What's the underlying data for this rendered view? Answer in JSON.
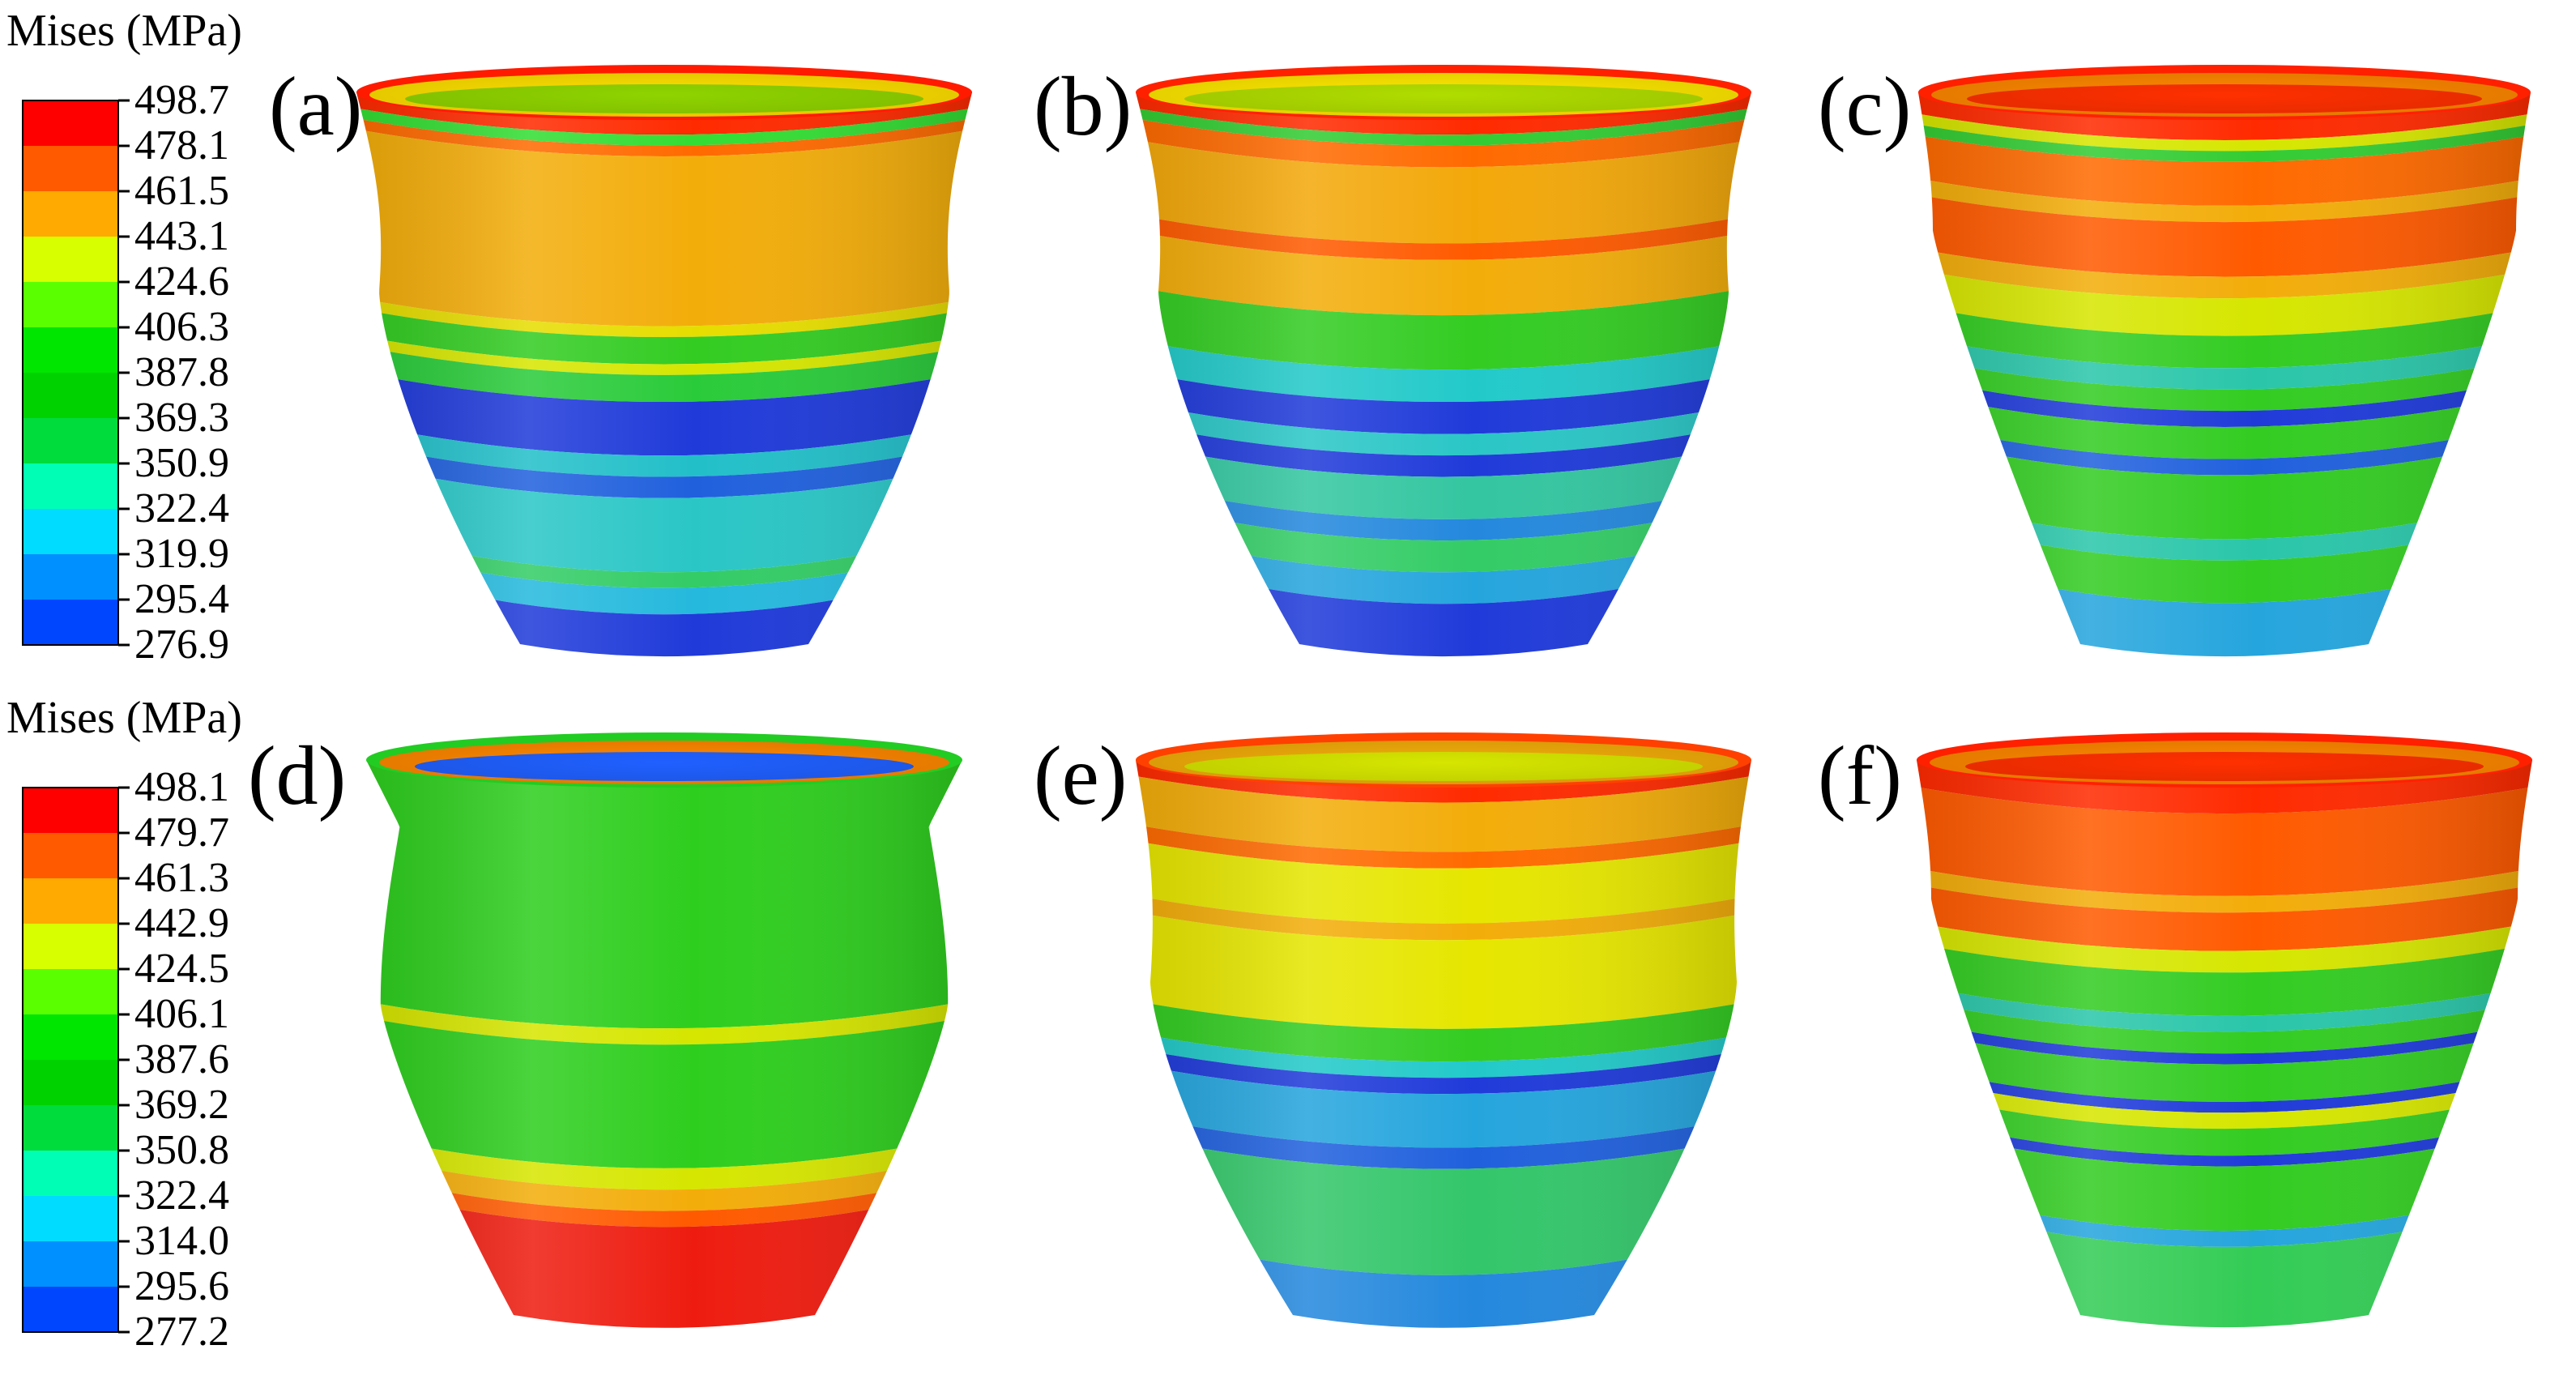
{
  "legends": [
    {
      "title": "Mises (MPa)",
      "ticks": [
        "498.7",
        "478.1",
        "461.5",
        "443.1",
        "424.6",
        "406.3",
        "387.8",
        "369.3",
        "350.9",
        "322.4",
        "319.9",
        "295.4",
        "276.9"
      ],
      "colors": [
        "#ff0000",
        "#ff5a00",
        "#ffaa00",
        "#d7ff00",
        "#5aff00",
        "#00e600",
        "#00d200",
        "#00dc3c",
        "#00ffb4",
        "#00dcff",
        "#0090ff",
        "#0046ff",
        "#0000ff"
      ]
    },
    {
      "title": "Mises (MPa)",
      "ticks": [
        "498.1",
        "479.7",
        "461.3",
        "442.9",
        "424.5",
        "406.1",
        "387.6",
        "369.2",
        "350.8",
        "322.4",
        "314.0",
        "295.6",
        "277.2"
      ],
      "colors": [
        "#ff0000",
        "#ff5a00",
        "#ffaa00",
        "#d7ff00",
        "#5aff00",
        "#00e600",
        "#00d200",
        "#00dc3c",
        "#00ffb4",
        "#00dcff",
        "#0090ff",
        "#0046ff",
        "#0000ff"
      ]
    }
  ],
  "panels": [
    {
      "label": "(a)",
      "rim_colors": [
        "#ff1a00",
        "#ffe000",
        "#8fd400"
      ],
      "bands": [
        {
          "from": 0.0,
          "to": 0.03,
          "color": "#ff2a00"
        },
        {
          "from": 0.03,
          "to": 0.05,
          "color": "#33dd33"
        },
        {
          "from": 0.05,
          "to": 0.07,
          "color": "#ff6a00"
        },
        {
          "from": 0.07,
          "to": 0.38,
          "color": "#f3ad0a"
        },
        {
          "from": 0.38,
          "to": 0.4,
          "color": "#e6dd00"
        },
        {
          "from": 0.4,
          "to": 0.45,
          "color": "#33cc22"
        },
        {
          "from": 0.45,
          "to": 0.47,
          "color": "#d6e600"
        },
        {
          "from": 0.47,
          "to": 0.52,
          "color": "#2acb3a"
        },
        {
          "from": 0.52,
          "to": 0.62,
          "color": "#1f3ad9"
        },
        {
          "from": 0.62,
          "to": 0.66,
          "color": "#22bfc9"
        },
        {
          "from": 0.66,
          "to": 0.7,
          "color": "#2060dd"
        },
        {
          "from": 0.7,
          "to": 0.84,
          "color": "#2ac6c6"
        },
        {
          "from": 0.84,
          "to": 0.87,
          "color": "#33cc66"
        },
        {
          "from": 0.87,
          "to": 0.92,
          "color": "#25b9dd"
        },
        {
          "from": 0.92,
          "to": 1.0,
          "color": "#1f3ad9"
        }
      ]
    },
    {
      "label": "(b)",
      "rim_colors": [
        "#ff2000",
        "#ffe800",
        "#b0dd00"
      ],
      "bands": [
        {
          "from": 0.0,
          "to": 0.03,
          "color": "#ff2a00"
        },
        {
          "from": 0.03,
          "to": 0.05,
          "color": "#33cc33"
        },
        {
          "from": 0.05,
          "to": 0.09,
          "color": "#ff6a00"
        },
        {
          "from": 0.09,
          "to": 0.23,
          "color": "#f3a80a"
        },
        {
          "from": 0.23,
          "to": 0.26,
          "color": "#ff5a00"
        },
        {
          "from": 0.26,
          "to": 0.36,
          "color": "#f3ad0a"
        },
        {
          "from": 0.36,
          "to": 0.46,
          "color": "#33cc22"
        },
        {
          "from": 0.46,
          "to": 0.52,
          "color": "#22c9c9"
        },
        {
          "from": 0.52,
          "to": 0.58,
          "color": "#1f3ad9"
        },
        {
          "from": 0.58,
          "to": 0.62,
          "color": "#2ac6c6"
        },
        {
          "from": 0.62,
          "to": 0.66,
          "color": "#1f3ad9"
        },
        {
          "from": 0.66,
          "to": 0.74,
          "color": "#33c6a0"
        },
        {
          "from": 0.74,
          "to": 0.78,
          "color": "#2488dd"
        },
        {
          "from": 0.78,
          "to": 0.84,
          "color": "#33cc66"
        },
        {
          "from": 0.84,
          "to": 0.9,
          "color": "#25a5dd"
        },
        {
          "from": 0.9,
          "to": 1.0,
          "color": "#1f3ad9"
        }
      ]
    },
    {
      "label": "(c)",
      "rim_colors": [
        "#ff2000",
        "#ff8800",
        "#ff3000"
      ],
      "bands": [
        {
          "from": 0.0,
          "to": 0.04,
          "color": "#ff2a00"
        },
        {
          "from": 0.04,
          "to": 0.06,
          "color": "#d6e600"
        },
        {
          "from": 0.06,
          "to": 0.08,
          "color": "#33cc33"
        },
        {
          "from": 0.08,
          "to": 0.16,
          "color": "#ff6a00"
        },
        {
          "from": 0.16,
          "to": 0.19,
          "color": "#f3ad0a"
        },
        {
          "from": 0.19,
          "to": 0.29,
          "color": "#ff5a00"
        },
        {
          "from": 0.29,
          "to": 0.33,
          "color": "#f3ad0a"
        },
        {
          "from": 0.33,
          "to": 0.4,
          "color": "#d6e600"
        },
        {
          "from": 0.4,
          "to": 0.46,
          "color": "#33cc22"
        },
        {
          "from": 0.46,
          "to": 0.5,
          "color": "#2ac6aa"
        },
        {
          "from": 0.5,
          "to": 0.54,
          "color": "#33cc22"
        },
        {
          "from": 0.54,
          "to": 0.57,
          "color": "#1f3ad9"
        },
        {
          "from": 0.57,
          "to": 0.63,
          "color": "#33cc22"
        },
        {
          "from": 0.63,
          "to": 0.66,
          "color": "#2060dd"
        },
        {
          "from": 0.66,
          "to": 0.78,
          "color": "#33cc22"
        },
        {
          "from": 0.78,
          "to": 0.82,
          "color": "#2ac6aa"
        },
        {
          "from": 0.82,
          "to": 0.9,
          "color": "#33cc22"
        },
        {
          "from": 0.9,
          "to": 1.0,
          "color": "#25a5dd"
        }
      ]
    },
    {
      "label": "(d)",
      "rim_colors": [
        "#22cc22",
        "#ff8800",
        "#2060ff"
      ],
      "bands": [
        {
          "from": 0.0,
          "to": 0.44,
          "color": "#2ece1e"
        },
        {
          "from": 0.44,
          "to": 0.47,
          "color": "#d6e600"
        },
        {
          "from": 0.47,
          "to": 0.7,
          "color": "#2ece1e"
        },
        {
          "from": 0.7,
          "to": 0.74,
          "color": "#d6e600"
        },
        {
          "from": 0.74,
          "to": 0.78,
          "color": "#f3ad0a"
        },
        {
          "from": 0.78,
          "to": 0.81,
          "color": "#ff5a00"
        },
        {
          "from": 0.81,
          "to": 1.0,
          "color": "#ee1c10"
        }
      ]
    },
    {
      "label": "(e)",
      "rim_colors": [
        "#ff4000",
        "#f3ad0a",
        "#d6e600"
      ],
      "bands": [
        {
          "from": 0.0,
          "to": 0.03,
          "color": "#ff2a00"
        },
        {
          "from": 0.03,
          "to": 0.12,
          "color": "#f3ad0a"
        },
        {
          "from": 0.12,
          "to": 0.15,
          "color": "#ff6a00"
        },
        {
          "from": 0.15,
          "to": 0.25,
          "color": "#e6e600"
        },
        {
          "from": 0.25,
          "to": 0.28,
          "color": "#f3ad0a"
        },
        {
          "from": 0.28,
          "to": 0.44,
          "color": "#e6e600"
        },
        {
          "from": 0.44,
          "to": 0.5,
          "color": "#33cc22"
        },
        {
          "from": 0.5,
          "to": 0.53,
          "color": "#22c9c9"
        },
        {
          "from": 0.53,
          "to": 0.56,
          "color": "#1f3ad9"
        },
        {
          "from": 0.56,
          "to": 0.66,
          "color": "#25a5dd"
        },
        {
          "from": 0.66,
          "to": 0.7,
          "color": "#2060dd"
        },
        {
          "from": 0.7,
          "to": 0.9,
          "color": "#33c66a"
        },
        {
          "from": 0.9,
          "to": 1.0,
          "color": "#2488dd"
        }
      ]
    },
    {
      "label": "(f)",
      "rim_colors": [
        "#ff2000",
        "#ff8800",
        "#ff3000"
      ],
      "bands": [
        {
          "from": 0.0,
          "to": 0.05,
          "color": "#ff2a00"
        },
        {
          "from": 0.05,
          "to": 0.2,
          "color": "#ff5a00"
        },
        {
          "from": 0.2,
          "to": 0.23,
          "color": "#f3ad0a"
        },
        {
          "from": 0.23,
          "to": 0.3,
          "color": "#ff5a00"
        },
        {
          "from": 0.3,
          "to": 0.34,
          "color": "#d6e600"
        },
        {
          "from": 0.34,
          "to": 0.42,
          "color": "#33cc22"
        },
        {
          "from": 0.42,
          "to": 0.45,
          "color": "#2ac6aa"
        },
        {
          "from": 0.45,
          "to": 0.49,
          "color": "#33cc22"
        },
        {
          "from": 0.49,
          "to": 0.51,
          "color": "#1f3ad9"
        },
        {
          "from": 0.51,
          "to": 0.58,
          "color": "#33cc22"
        },
        {
          "from": 0.58,
          "to": 0.6,
          "color": "#1f3ad9"
        },
        {
          "from": 0.6,
          "to": 0.63,
          "color": "#d6e600"
        },
        {
          "from": 0.63,
          "to": 0.68,
          "color": "#33cc22"
        },
        {
          "from": 0.68,
          "to": 0.7,
          "color": "#1f3ad9"
        },
        {
          "from": 0.7,
          "to": 0.82,
          "color": "#33cc22"
        },
        {
          "from": 0.82,
          "to": 0.85,
          "color": "#25a5dd"
        },
        {
          "from": 0.85,
          "to": 1.0,
          "color": "#33cc55"
        }
      ]
    }
  ]
}
